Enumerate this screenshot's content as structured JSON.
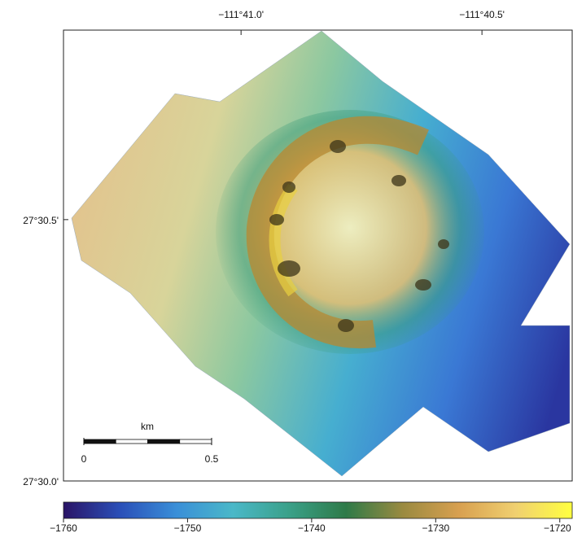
{
  "map": {
    "longitude_axis": {
      "lim": [
        -111.68947,
        -111.67188
      ],
      "ticks": [
        {
          "value": -111.68333,
          "label": "−111°41.0'"
        },
        {
          "value": -111.675,
          "label": "−111°40.5'"
        }
      ]
    },
    "latitude_axis": {
      "lim": [
        27.5,
        27.51437
      ],
      "ticks": [
        {
          "value": 27.5,
          "label": "27°30.0'"
        },
        {
          "value": 27.50833,
          "label": "27°30.5'"
        }
      ]
    },
    "scale_bar": {
      "unit": "km",
      "ticks": [
        0,
        0.5
      ]
    },
    "colorbar": {
      "lim": [
        -1760,
        -1719
      ],
      "ticks": [
        {
          "value": -1760,
          "label": "−1760"
        },
        {
          "value": -1750,
          "label": "−1750"
        },
        {
          "value": -1740,
          "label": "−1740"
        },
        {
          "value": -1730,
          "label": "−1730"
        },
        {
          "value": -1720,
          "label": "−1720"
        }
      ],
      "colormap": [
        "#2a1466",
        "#2a4fb8",
        "#3a8fd8",
        "#4ab8c8",
        "#3aa088",
        "#2e7a48",
        "#9a8a40",
        "#d8a050",
        "#f0d070",
        "#ffff40"
      ]
    }
  }
}
